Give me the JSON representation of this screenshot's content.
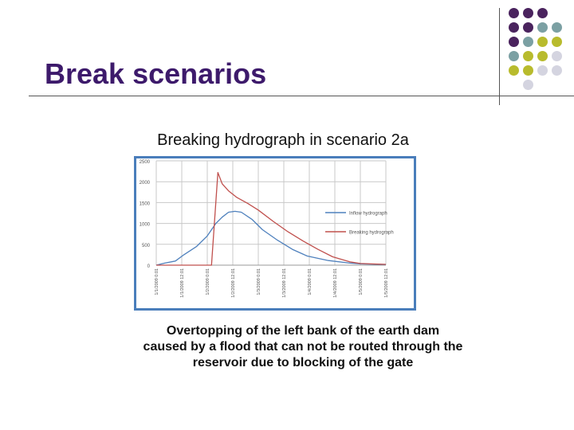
{
  "slide": {
    "title": "Break scenarios",
    "chart_heading": "Breaking hydrograph in scenario 2a",
    "caption_lines": [
      "Overtopping of the left bank of the earth dam",
      "caused by a flood that can not be routed through the",
      "reservoir due to blocking of the gate"
    ]
  },
  "decoration": {
    "dot_colors": {
      "purple": "#4a235e",
      "teal": "#7ba0a3",
      "olive": "#b8bb2d",
      "lavender": "#d4d4e0"
    },
    "dot_rows": [
      [
        "purple",
        "purple",
        "purple",
        null
      ],
      [
        "purple",
        "purple",
        "teal",
        "teal"
      ],
      [
        "purple",
        "teal",
        "olive",
        "olive"
      ],
      [
        "teal",
        "olive",
        "olive",
        "lavender"
      ],
      [
        "olive",
        "olive",
        "lavender",
        "lavender"
      ],
      [
        null,
        "lavender",
        null,
        null
      ]
    ]
  },
  "chart_data": {
    "type": "line",
    "title": "",
    "xlabel": "",
    "ylabel": "",
    "x_tick_labels": [
      "1/1/2009 0:01",
      "1/1/2009 12:01",
      "1/2/2009 0:01",
      "1/2/2009 12:01",
      "1/3/2009 0:01",
      "1/3/2009 12:01",
      "1/4/2009 0:01",
      "1/4/2009 12:01",
      "1/5/2009 0:01",
      "1/5/2009 12:01"
    ],
    "xlim": [
      "1/1/2009 0:01",
      "1/5/2009 12:01"
    ],
    "ylim": [
      0,
      2500
    ],
    "y_ticks": [
      0,
      500,
      1000,
      1500,
      2000,
      2500
    ],
    "grid": true,
    "legend_position": "right",
    "colors": {
      "background": "#ffffff",
      "frame": "#4a7ebb",
      "grid": "#c8c8c8",
      "tick_text": "#555555"
    },
    "series": [
      {
        "name": "Inflow hydrograph",
        "color": "#4f81bd",
        "points": [
          [
            "1/1/2009 0:01",
            0
          ],
          [
            "1/1/2009 4:01",
            50
          ],
          [
            "1/1/2009 9:01",
            100
          ],
          [
            "1/1/2009 13:01",
            250
          ],
          [
            "1/1/2009 19:01",
            450
          ],
          [
            "1/2/2009 0:01",
            700
          ],
          [
            "1/2/2009 4:01",
            1000
          ],
          [
            "1/2/2009 7:01",
            1150
          ],
          [
            "1/2/2009 10:01",
            1270
          ],
          [
            "1/2/2009 13:01",
            1290
          ],
          [
            "1/2/2009 16:01",
            1270
          ],
          [
            "1/2/2009 21:01",
            1100
          ],
          [
            "1/3/2009 2:01",
            850
          ],
          [
            "1/3/2009 9:01",
            600
          ],
          [
            "1/3/2009 16:01",
            380
          ],
          [
            "1/3/2009 23:01",
            220
          ],
          [
            "1/4/2009 9:01",
            110
          ],
          [
            "1/4/2009 19:01",
            50
          ],
          [
            "1/5/2009 0:01",
            30
          ],
          [
            "1/5/2009 12:01",
            15
          ]
        ]
      },
      {
        "name": "Breaking hydrograph",
        "color": "#c0504d",
        "points": [
          [
            "1/1/2009 0:01",
            0
          ],
          [
            "1/2/2009 0:01",
            0
          ],
          [
            "1/2/2009 2:01",
            0
          ],
          [
            "1/2/2009 5:01",
            2220
          ],
          [
            "1/2/2009 7:01",
            1950
          ],
          [
            "1/2/2009 10:01",
            1780
          ],
          [
            "1/2/2009 14:01",
            1620
          ],
          [
            "1/2/2009 19:01",
            1480
          ],
          [
            "1/3/2009 0:01",
            1320
          ],
          [
            "1/3/2009 7:01",
            1050
          ],
          [
            "1/3/2009 14:01",
            800
          ],
          [
            "1/3/2009 21:01",
            580
          ],
          [
            "1/4/2009 4:01",
            380
          ],
          [
            "1/4/2009 11:01",
            200
          ],
          [
            "1/4/2009 19:01",
            80
          ],
          [
            "1/5/2009 0:01",
            40
          ],
          [
            "1/5/2009 12:01",
            20
          ]
        ]
      }
    ]
  }
}
